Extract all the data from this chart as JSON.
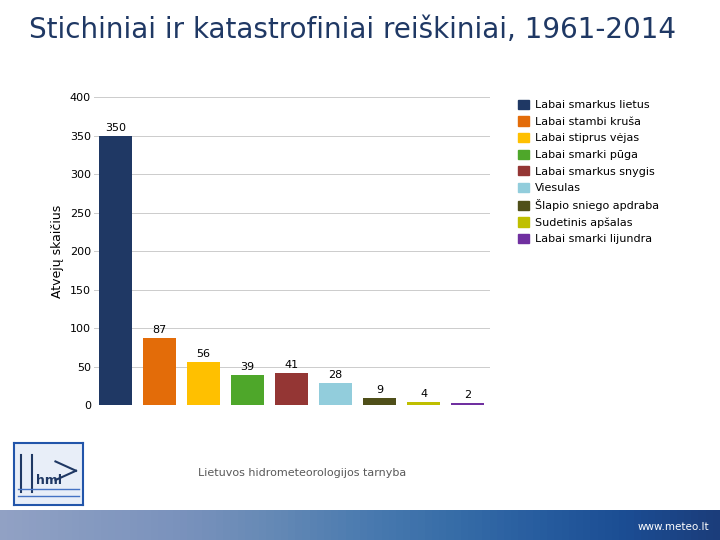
{
  "title": "Stichiniai ir katastrofiniai reiškiniai, 1961-2014",
  "ylabel": "Atvejų skaičius",
  "values": [
    350,
    87,
    56,
    39,
    41,
    28,
    9,
    4,
    2
  ],
  "colors": [
    "#1F3864",
    "#E36C09",
    "#FFC000",
    "#4EA72A",
    "#943634",
    "#92CDDC",
    "#4F4F19",
    "#BFBF00",
    "#7030A0"
  ],
  "labels": [
    "Labai smarkus lietus",
    "Labai stambi kruša",
    "Labai stiprus vėjas",
    "Labai smarki pūga",
    "Labai smarkus snygis",
    "Viesulas",
    "Šlapio sniego apdraba",
    "Sudetinis apšalas",
    "Labai smarki lijundra"
  ],
  "ylim": [
    0,
    400
  ],
  "yticks": [
    0,
    50,
    100,
    150,
    200,
    250,
    300,
    350,
    400
  ],
  "bg_color": "#FFFFFF",
  "title_color": "#1F3864",
  "title_fontsize": 20,
  "bar_label_fontsize": 8,
  "legend_fontsize": 8,
  "ylabel_fontsize": 9,
  "footer_text": "Lietuvos hidrometeorologijos tarnyba",
  "footer_color": "#595959",
  "website_text": "www.meteo.lt",
  "website_color": "#FFFFFF",
  "website_bg": "#2E4A8B"
}
